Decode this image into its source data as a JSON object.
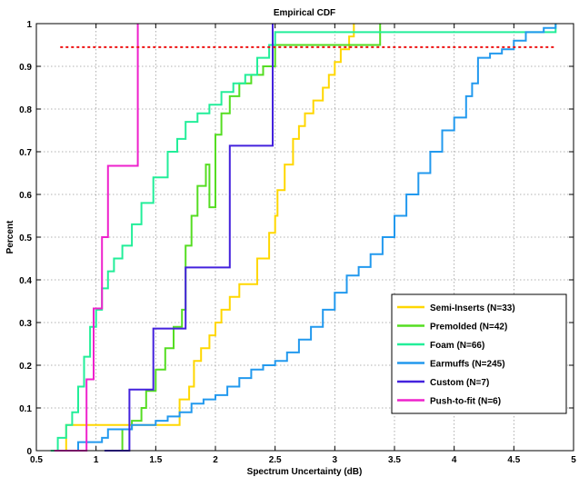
{
  "chart_data": {
    "type": "line",
    "title": "Empirical CDF",
    "xlabel": "Spectrum Uncertainty (dB)",
    "ylabel": "Percent",
    "xlim": [
      0.5,
      5
    ],
    "ylim": [
      0,
      1
    ],
    "xticks": [
      "0.5",
      "1",
      "1.5",
      "2",
      "2.5",
      "3",
      "3.5",
      "4",
      "4.5",
      "5"
    ],
    "yticks": [
      "0",
      "0.1",
      "0.2",
      "0.3",
      "0.4",
      "0.5",
      "0.6",
      "0.7",
      "0.8",
      "0.9",
      "1"
    ],
    "grid": true,
    "legend_position": "bottom-right",
    "series": [
      {
        "name": "Semi-Inserts (N=33)",
        "color": "#ffd700",
        "x": [
          0.63,
          0.75,
          1.2,
          1.7,
          1.78,
          1.82,
          1.88,
          1.95,
          2.0,
          2.05,
          2.12,
          2.2,
          2.27,
          2.35,
          2.45,
          2.5,
          2.52,
          2.58,
          2.65,
          2.7,
          2.75,
          2.82,
          2.9,
          2.95,
          3.0,
          3.05,
          3.12,
          3.16
        ],
        "y": [
          0.0,
          0.06,
          0.06,
          0.12,
          0.15,
          0.21,
          0.24,
          0.27,
          0.3,
          0.33,
          0.36,
          0.39,
          0.39,
          0.45,
          0.51,
          0.55,
          0.61,
          0.67,
          0.73,
          0.76,
          0.79,
          0.82,
          0.85,
          0.88,
          0.91,
          0.94,
          0.97,
          1.0
        ]
      },
      {
        "name": "Premolded (N=42)",
        "color": "#55dd22",
        "x": [
          1.18,
          1.22,
          1.3,
          1.38,
          1.42,
          1.5,
          1.58,
          1.65,
          1.72,
          1.75,
          1.8,
          1.85,
          1.92,
          1.95,
          2.0,
          2.05,
          2.12,
          2.2,
          2.3,
          2.4,
          2.5,
          3.38
        ],
        "y": [
          0.0,
          0.05,
          0.07,
          0.1,
          0.14,
          0.19,
          0.24,
          0.29,
          0.33,
          0.48,
          0.55,
          0.62,
          0.67,
          0.57,
          0.74,
          0.79,
          0.83,
          0.86,
          0.88,
          0.9,
          0.95,
          1.0
        ]
      },
      {
        "name": "Foam (N=66)",
        "color": "#22ee99",
        "x": [
          0.62,
          0.68,
          0.75,
          0.8,
          0.85,
          0.9,
          0.95,
          1.0,
          1.05,
          1.1,
          1.15,
          1.22,
          1.3,
          1.38,
          1.48,
          1.6,
          1.68,
          1.75,
          1.85,
          1.95,
          2.05,
          2.15,
          2.25,
          2.35,
          2.45,
          2.5,
          4.85
        ],
        "y": [
          0.0,
          0.03,
          0.06,
          0.09,
          0.15,
          0.22,
          0.29,
          0.33,
          0.38,
          0.42,
          0.45,
          0.48,
          0.53,
          0.58,
          0.64,
          0.7,
          0.73,
          0.77,
          0.79,
          0.81,
          0.84,
          0.86,
          0.88,
          0.92,
          0.95,
          0.98,
          1.0
        ]
      },
      {
        "name": "Earmuffs (N=245)",
        "color": "#2299ee",
        "x": [
          0.8,
          0.85,
          1.05,
          1.1,
          1.3,
          1.5,
          1.6,
          1.7,
          1.8,
          1.9,
          2.0,
          2.1,
          2.2,
          2.3,
          2.4,
          2.5,
          2.6,
          2.7,
          2.8,
          2.9,
          3.0,
          3.1,
          3.2,
          3.3,
          3.4,
          3.5,
          3.6,
          3.7,
          3.8,
          3.9,
          4.0,
          4.1,
          4.15,
          4.2,
          4.3,
          4.4,
          4.5,
          4.6,
          4.75,
          4.85
        ],
        "y": [
          0.0,
          0.02,
          0.03,
          0.05,
          0.06,
          0.07,
          0.08,
          0.09,
          0.11,
          0.12,
          0.13,
          0.15,
          0.17,
          0.19,
          0.2,
          0.21,
          0.23,
          0.26,
          0.29,
          0.33,
          0.37,
          0.41,
          0.43,
          0.46,
          0.5,
          0.55,
          0.6,
          0.65,
          0.7,
          0.75,
          0.78,
          0.83,
          0.86,
          0.92,
          0.93,
          0.94,
          0.96,
          0.98,
          0.99,
          1.0
        ]
      },
      {
        "name": "Custom (N=7)",
        "color": "#4422dd",
        "x": [
          1.07,
          1.28,
          1.48,
          1.75,
          2.12,
          2.48
        ],
        "y": [
          0.0,
          0.143,
          0.286,
          0.429,
          0.714,
          0.857
        ]
      },
      {
        "name": "Push-to-fit (N=6)",
        "color": "#ee22cc",
        "x": [
          0.65,
          0.92,
          0.98,
          1.05,
          1.1,
          1.35
        ],
        "y": [
          0.0,
          0.167,
          0.333,
          0.5,
          0.667,
          0.833
        ]
      }
    ],
    "reference_line": {
      "y": 0.945,
      "color": "#ee1111",
      "style": "dotted"
    }
  }
}
